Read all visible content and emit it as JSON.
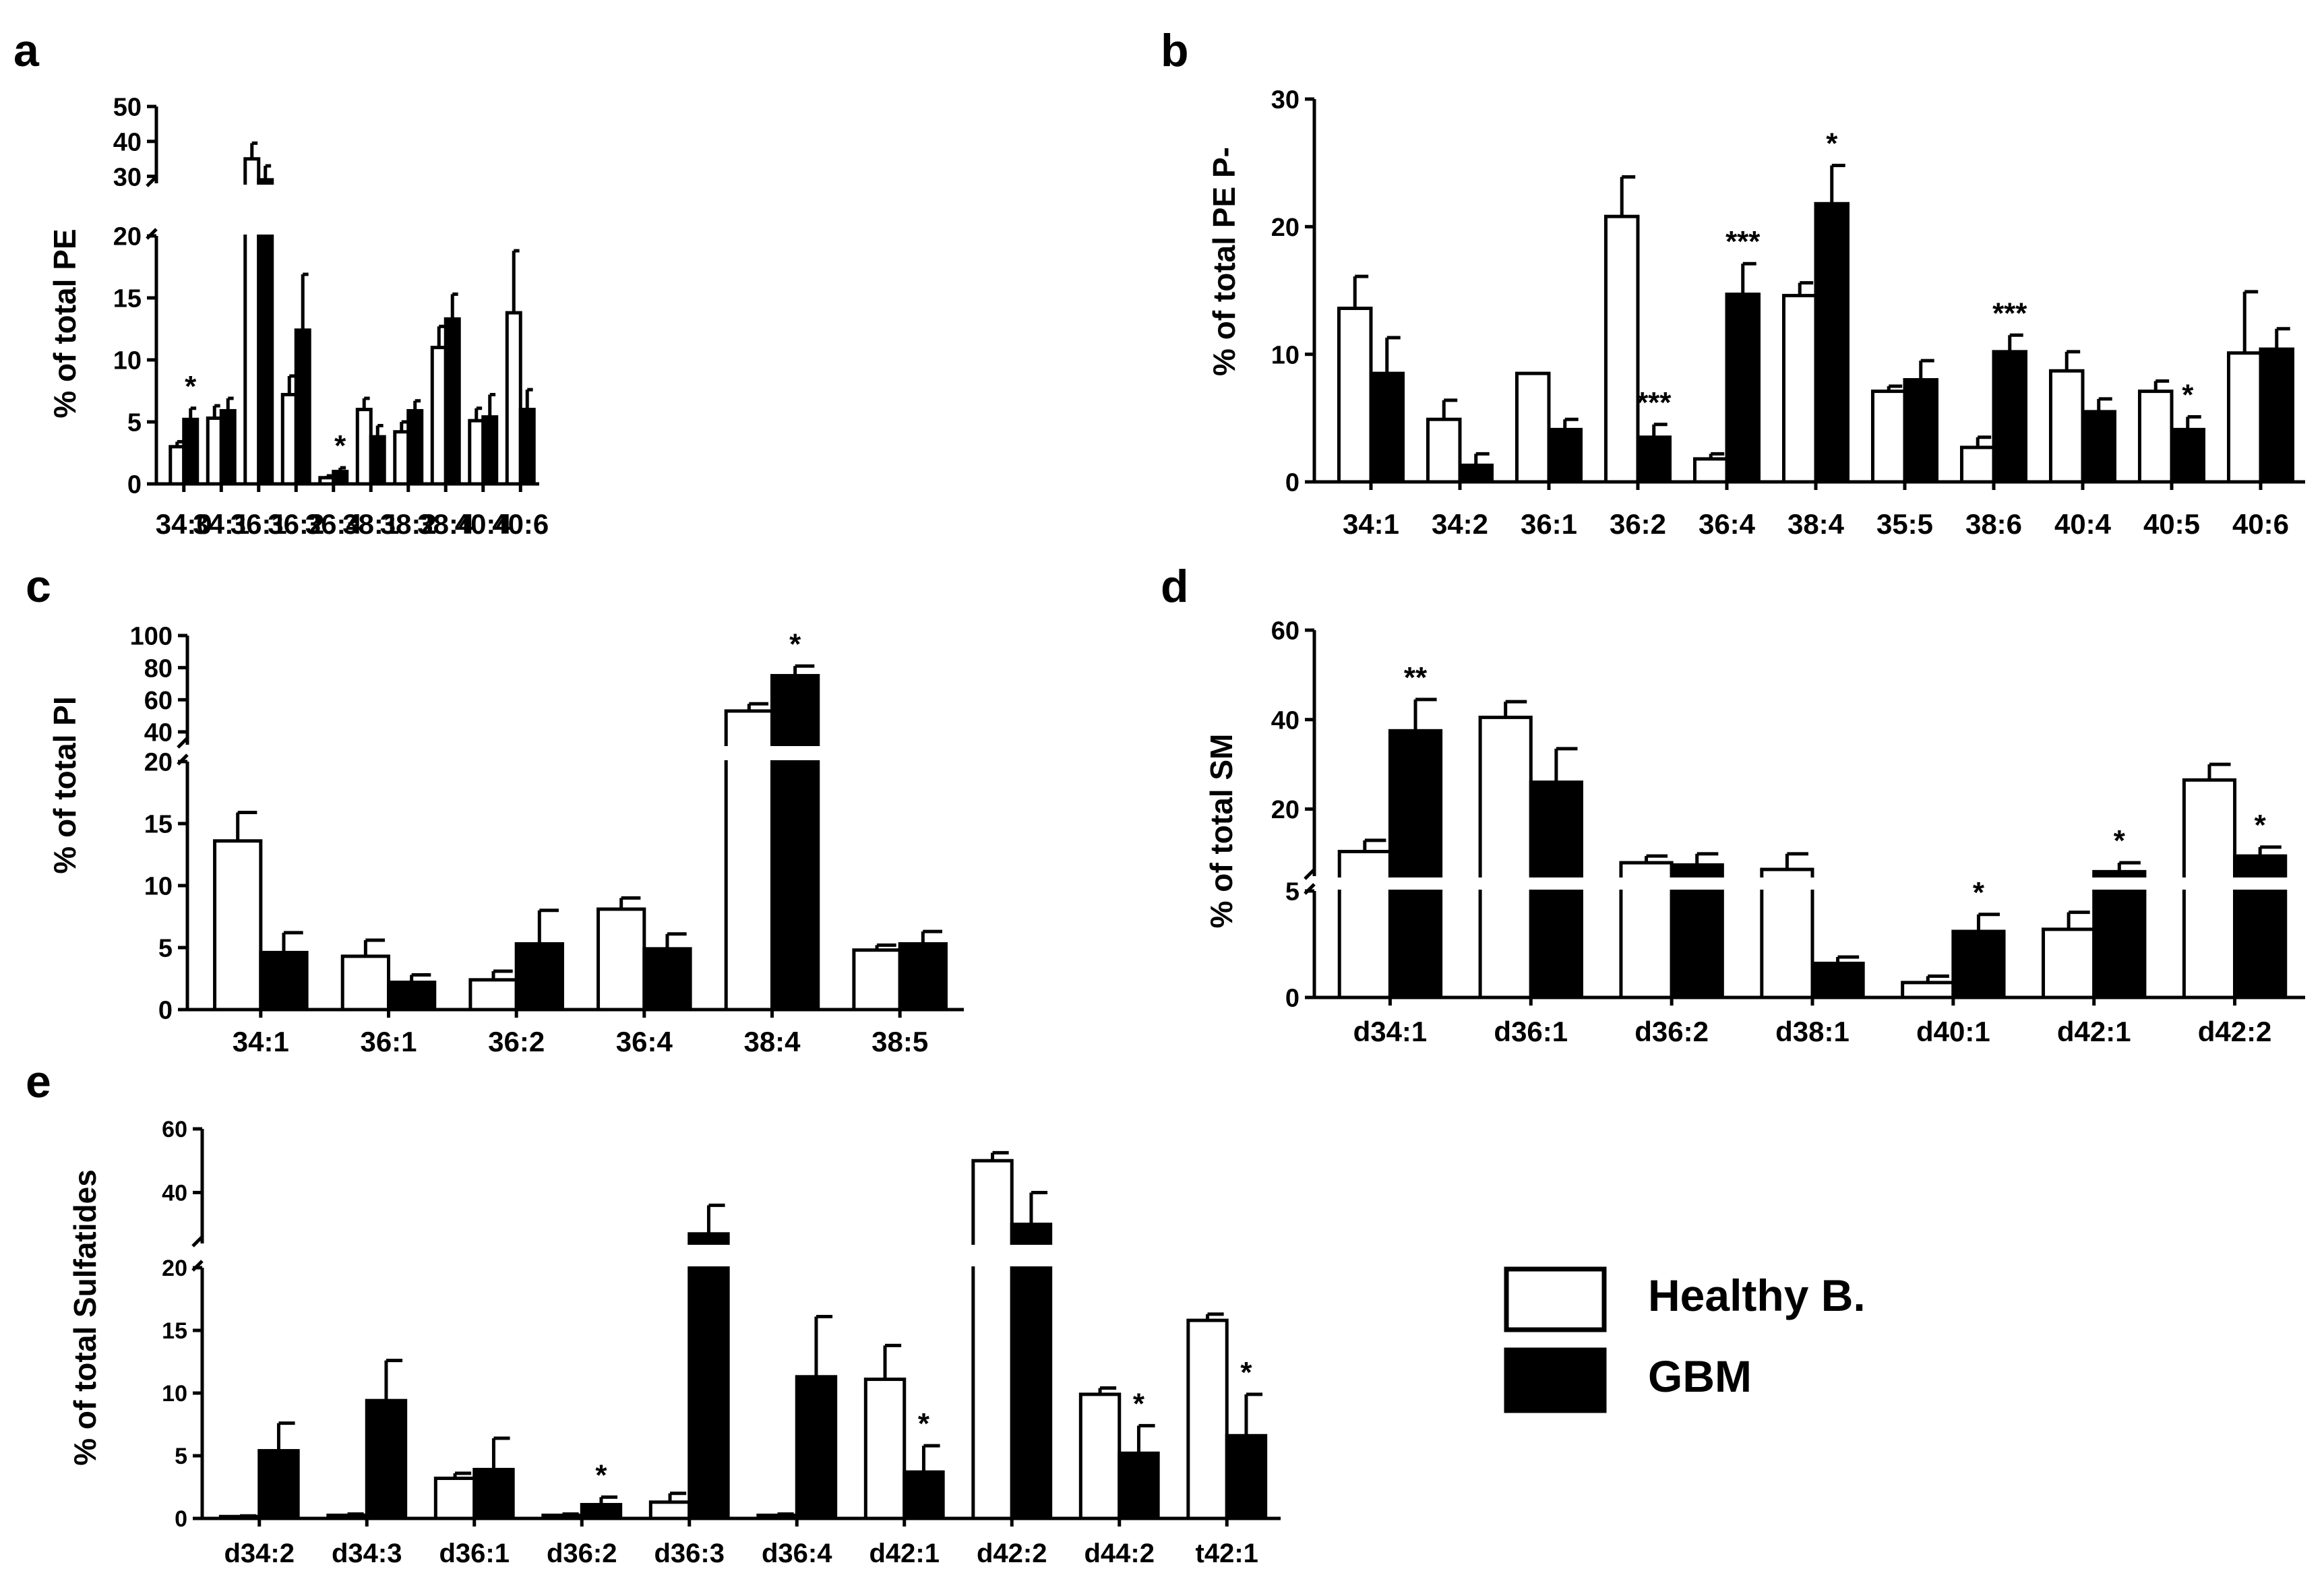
{
  "colors": {
    "healthy": "#ffffff",
    "gbm": "#000000",
    "stroke": "#000000"
  },
  "legend": {
    "healthy": "Healthy B.",
    "gbm": "GBM"
  },
  "chart_data": [
    {
      "panel": "a",
      "type": "bar",
      "ylabel": "% of total PE",
      "categories": [
        "34:0",
        "34:1",
        "36:1",
        "36:2",
        "36:4",
        "38:1",
        "38:2",
        "38:4",
        "40:4",
        "40:6"
      ],
      "series": [
        {
          "name": "Healthy B.",
          "values": [
            3.0,
            5.3,
            35,
            7.2,
            0.5,
            6.0,
            4.2,
            11.0,
            5.1,
            13.8
          ],
          "err": [
            0.4,
            1.0,
            4.5,
            1.5,
            0.15,
            0.9,
            0.8,
            1.7,
            1.0,
            5.0
          ]
        },
        {
          "name": "GBM",
          "values": [
            5.2,
            5.9,
            29,
            12.4,
            1.0,
            3.8,
            5.9,
            13.3,
            5.4,
            6.0
          ],
          "err": [
            0.9,
            1.0,
            4.0,
            4.5,
            0.3,
            0.9,
            0.8,
            2.0,
            1.8,
            1.6
          ]
        }
      ],
      "sig": [
        {
          "i": 0,
          "s": 1,
          "t": "*"
        },
        {
          "i": 4,
          "s": 1,
          "t": "*"
        }
      ],
      "lower_ticks": [
        0,
        5,
        10,
        15,
        20
      ],
      "upper_ticks": [
        30,
        40,
        50
      ],
      "upper_tick_labels": [
        "30",
        "40",
        "50"
      ]
    },
    {
      "panel": "b",
      "type": "bar",
      "ylabel": "% of total PE P-",
      "categories": [
        "34:1",
        "34:2",
        "36:1",
        "36:2",
        "36:4",
        "38:4",
        "35:5",
        "38:6",
        "40:4",
        "40:5",
        "40:6"
      ],
      "series": [
        {
          "name": "Healthy B.",
          "values": [
            13.6,
            4.9,
            8.5,
            20.8,
            1.8,
            14.6,
            7.1,
            2.7,
            8.7,
            7.1,
            10.1
          ],
          "err": [
            2.5,
            1.5,
            0,
            3.1,
            0.4,
            1.0,
            0.4,
            0.8,
            1.5,
            0.8,
            4.8
          ]
        },
        {
          "name": "GBM",
          "values": [
            8.5,
            1.3,
            4.1,
            3.5,
            14.7,
            21.8,
            8.0,
            10.2,
            5.5,
            4.1,
            10.4
          ],
          "err": [
            2.8,
            0.9,
            0.8,
            1.0,
            2.4,
            3.0,
            1.5,
            1.3,
            1.0,
            1.0,
            1.6
          ]
        }
      ],
      "sig": [
        {
          "i": 3,
          "s": 1,
          "t": "***"
        },
        {
          "i": 4,
          "s": 1,
          "t": "***"
        },
        {
          "i": 5,
          "s": 1,
          "t": "*"
        },
        {
          "i": 7,
          "s": 1,
          "t": "***"
        },
        {
          "i": 9,
          "s": 1,
          "t": "*"
        }
      ],
      "ticks": [
        0,
        10,
        20,
        30
      ],
      "ymax": 30
    },
    {
      "panel": "c",
      "type": "bar",
      "ylabel": "% of total PI",
      "categories": [
        "34:1",
        "36:1",
        "36:2",
        "36:4",
        "38:4",
        "38:5"
      ],
      "series": [
        {
          "name": "Healthy B.",
          "values": [
            13.6,
            4.3,
            2.4,
            8.1,
            53,
            4.8
          ],
          "err": [
            2.3,
            1.3,
            0.7,
            0.9,
            4.5,
            0.4
          ]
        },
        {
          "name": "GBM",
          "values": [
            4.6,
            2.2,
            5.3,
            4.9,
            75,
            5.3
          ],
          "err": [
            1.6,
            0.6,
            2.7,
            1.2,
            6.0,
            1.0
          ]
        }
      ],
      "sig": [
        {
          "i": 4,
          "s": 1,
          "t": "*"
        }
      ],
      "lower_ticks": [
        0,
        5,
        10,
        15,
        20
      ],
      "upper_ticks": [
        40,
        60,
        80,
        100
      ],
      "upper_tick_labels": [
        "40",
        "60",
        "80",
        "100"
      ]
    },
    {
      "panel": "d",
      "type": "bar",
      "ylabel": "% of total SM",
      "categories": [
        "d34:1",
        "d36:1",
        "d36:2",
        "d38:1",
        "d40:1",
        "d42:1",
        "d42:2"
      ],
      "series": [
        {
          "name": "Healthy B.",
          "values": [
            10.5,
            40.5,
            8,
            6.5,
            0.7,
            3.2,
            26.5
          ],
          "err": [
            2.5,
            3.5,
            1.5,
            3.5,
            0.3,
            0.8,
            3.5
          ]
        },
        {
          "name": "GBM",
          "values": [
            37.5,
            26,
            7.5,
            1.6,
            3.1,
            6,
            9.5
          ],
          "err": [
            7.0,
            7.5,
            2.5,
            0.3,
            0.8,
            2.0,
            2.0
          ]
        }
      ],
      "sig": [
        {
          "i": 0,
          "s": 1,
          "t": "**"
        },
        {
          "i": 4,
          "s": 1,
          "t": "*"
        },
        {
          "i": 5,
          "s": 1,
          "t": "*"
        },
        {
          "i": 6,
          "s": 1,
          "t": "*"
        }
      ],
      "lower_ticks": [
        0,
        5
      ],
      "upper_ticks": [
        20,
        40,
        60
      ],
      "upper_tick_labels": [
        "20",
        "40",
        "60"
      ]
    },
    {
      "panel": "e",
      "type": "bar",
      "ylabel": "% of total Sulfatides",
      "categories": [
        "d34:2",
        "d34:3",
        "d36:1",
        "d36:2",
        "d36:3",
        "d36:4",
        "d42:1",
        "d42:2",
        "d44:2",
        "t42:1"
      ],
      "series": [
        {
          "name": "Healthy B.",
          "values": [
            0.15,
            0.25,
            3.2,
            0.25,
            1.3,
            0.25,
            11.1,
            50,
            9.9,
            15.8
          ],
          "err": [
            0.05,
            0.1,
            0.4,
            0.1,
            0.7,
            0.1,
            2.7,
            2.5,
            0.5,
            0.5
          ]
        },
        {
          "name": "GBM",
          "values": [
            5.4,
            9.4,
            3.9,
            1.1,
            27,
            11.3,
            3.7,
            30,
            5.2,
            6.6
          ],
          "err": [
            2.2,
            3.2,
            2.5,
            0.6,
            9.0,
            4.8,
            2.1,
            10,
            2.2,
            3.3
          ]
        }
      ],
      "sig": [
        {
          "i": 3,
          "s": 1,
          "t": "*"
        },
        {
          "i": 6,
          "s": 1,
          "t": "*"
        },
        {
          "i": 8,
          "s": 1,
          "t": "*"
        },
        {
          "i": 9,
          "s": 1,
          "t": "*"
        }
      ],
      "lower_ticks": [
        0,
        5,
        10,
        15,
        20
      ],
      "upper_ticks": [
        40,
        60
      ],
      "upper_tick_labels": [
        "40",
        "60"
      ]
    }
  ]
}
